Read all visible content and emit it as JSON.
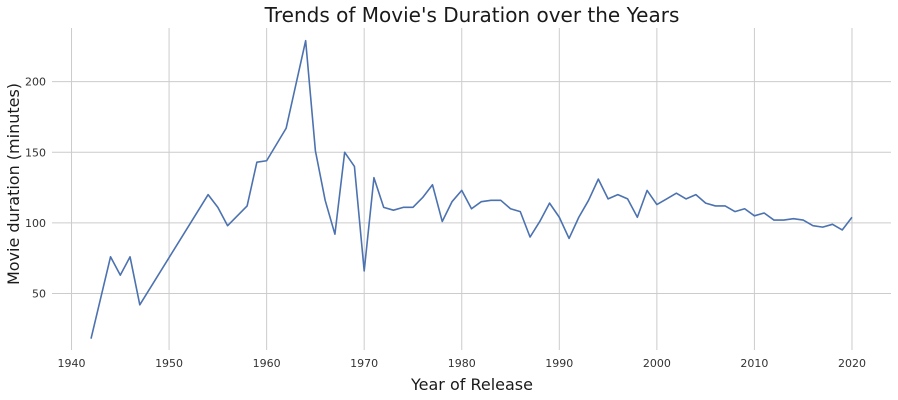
{
  "chart_data": {
    "type": "line",
    "title": "Trends of Movie's Duration over the Years",
    "xlabel": "Year of Release",
    "ylabel": "Movie duration (minutes)",
    "xlim": [
      1938,
      2024
    ],
    "ylim": [
      10,
      238
    ],
    "xticks": [
      1940,
      1950,
      1960,
      1970,
      1980,
      1990,
      2000,
      2010,
      2020
    ],
    "yticks": [
      50,
      100,
      150,
      200
    ],
    "grid": true,
    "colors": {
      "line": "#4c72b0",
      "grid": "#cccccc"
    },
    "series": [
      {
        "x": [
          1942,
          1944,
          1945,
          1946,
          1947,
          1954,
          1955,
          1956,
          1958,
          1959,
          1960,
          1962,
          1964,
          1965,
          1966,
          1967,
          1968,
          1969,
          1970,
          1971,
          1972,
          1973,
          1974,
          1975,
          1976,
          1977,
          1978,
          1979,
          1980,
          1981,
          1982,
          1983,
          1984,
          1985,
          1986,
          1987,
          1988,
          1989,
          1990,
          1991,
          1992,
          1993,
          1994,
          1995,
          1996,
          1997,
          1998,
          1999,
          2000,
          2001,
          2002,
          2003,
          2004,
          2005,
          2006,
          2007,
          2008,
          2009,
          2010,
          2011,
          2012,
          2013,
          2014,
          2015,
          2016,
          2017,
          2018,
          2019,
          2020
        ],
        "y": [
          18,
          76,
          63,
          76,
          42,
          120,
          111,
          98,
          112,
          143,
          144,
          167,
          229,
          151,
          116,
          92,
          150,
          140,
          66,
          132,
          111,
          109,
          111,
          111,
          118,
          127,
          101,
          115,
          123,
          110,
          115,
          116,
          116,
          110,
          108,
          90,
          101,
          114,
          104,
          89,
          104,
          116,
          131,
          117,
          120,
          117,
          104,
          123,
          113,
          117,
          121,
          117,
          120,
          114,
          112,
          112,
          108,
          110,
          105,
          107,
          102,
          102,
          103,
          102,
          98,
          97,
          99,
          95,
          104
        ]
      }
    ]
  }
}
